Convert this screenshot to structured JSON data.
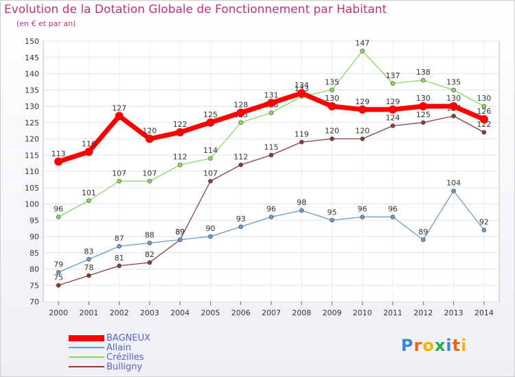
{
  "title": "Evolution de la Dotation Globale de Fonctionnement par Habitant",
  "subtitle": "(en € et par an)",
  "logo": "Proxiti",
  "chart_data": {
    "type": "line",
    "title": "Evolution de la Dotation Globale de Fonctionnement par Habitant",
    "subtitle": "(en € et par an)",
    "x": [
      2000,
      2001,
      2002,
      2003,
      2004,
      2005,
      2006,
      2007,
      2008,
      2009,
      2010,
      2011,
      2012,
      2013,
      2014
    ],
    "ylim": [
      70,
      150
    ],
    "yticks": [
      70,
      75,
      80,
      85,
      90,
      95,
      100,
      105,
      110,
      115,
      120,
      125,
      130,
      135,
      140,
      145,
      150
    ],
    "legend_position": "bottom-left",
    "series": [
      {
        "name": "BAGNEUX",
        "color": "#ff0000",
        "values": [
          113,
          116,
          127,
          120,
          122,
          125,
          128,
          131,
          134,
          130,
          129,
          129,
          130,
          130,
          126
        ]
      },
      {
        "name": "Allain",
        "color": "#6699cc",
        "values": [
          79,
          83,
          87,
          88,
          89,
          90,
          93,
          96,
          98,
          95,
          96,
          96,
          89,
          104,
          92
        ]
      },
      {
        "name": "Crézilles",
        "color": "#88d860",
        "values": [
          96,
          101,
          107,
          107,
          112,
          114,
          125,
          128,
          133,
          135,
          147,
          137,
          138,
          135,
          130
        ]
      },
      {
        "name": "Bulligny",
        "color": "#8b3a3a",
        "values": [
          75,
          78,
          81,
          82,
          89,
          107,
          112,
          115,
          119,
          120,
          120,
          124,
          125,
          127,
          122
        ]
      }
    ]
  }
}
